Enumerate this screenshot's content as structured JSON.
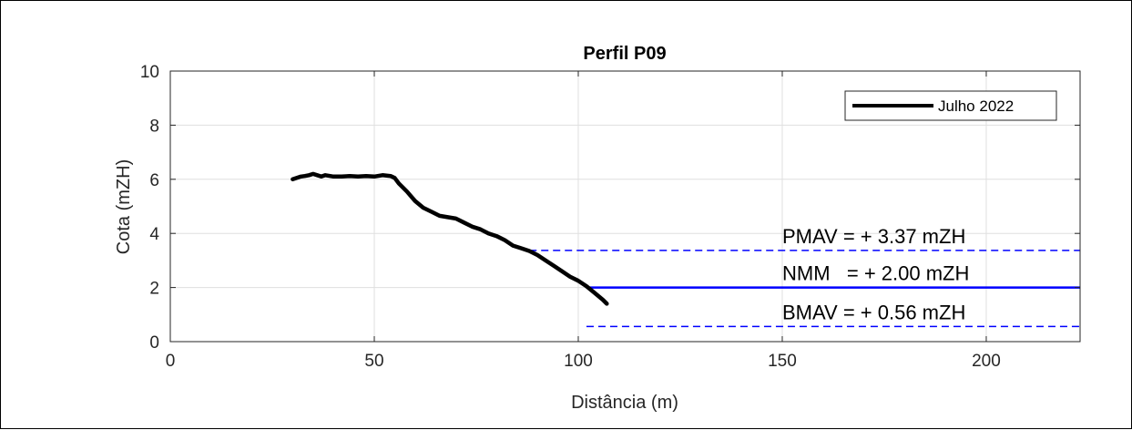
{
  "chart_data": {
    "type": "line",
    "title": "Perfil P09",
    "xlabel": "Distância (m)",
    "ylabel": "Cota (mZH)",
    "xlim": [
      0,
      223
    ],
    "ylim": [
      0,
      10
    ],
    "xticks": [
      0,
      50,
      100,
      150,
      200
    ],
    "yticks": [
      0,
      2,
      4,
      6,
      8,
      10
    ],
    "grid": true,
    "legend_position": "top-right",
    "series": [
      {
        "name": "Julho 2022",
        "color": "#000000",
        "x": [
          30,
          31,
          32,
          33,
          34,
          35,
          36,
          37,
          38,
          40,
          42,
          44,
          46,
          48,
          50,
          52,
          54,
          55,
          56,
          58,
          60,
          62,
          64,
          66,
          68,
          70,
          72,
          74,
          76,
          78,
          80,
          82,
          84,
          86,
          88,
          90,
          92,
          94,
          96,
          98,
          100,
          102,
          104,
          106,
          107
        ],
        "y": [
          6.0,
          6.05,
          6.1,
          6.12,
          6.15,
          6.2,
          6.15,
          6.1,
          6.15,
          6.1,
          6.1,
          6.12,
          6.1,
          6.12,
          6.1,
          6.15,
          6.12,
          6.05,
          5.85,
          5.55,
          5.2,
          4.95,
          4.8,
          4.65,
          4.6,
          4.55,
          4.4,
          4.25,
          4.15,
          4.0,
          3.9,
          3.75,
          3.55,
          3.45,
          3.35,
          3.2,
          3.0,
          2.8,
          2.6,
          2.4,
          2.25,
          2.05,
          1.8,
          1.55,
          1.4
        ]
      }
    ],
    "reference_lines": [
      {
        "label": "PMAV = + 3.37 mZH",
        "y": 3.37,
        "x_start": 88,
        "style": "dashed",
        "color": "#0000ff"
      },
      {
        "label": "NMM   = + 2.00 mZH",
        "y": 2.0,
        "x_start": 102,
        "style": "solid",
        "color": "#0000ff"
      },
      {
        "label": "BMAV = + 0.56 mZH",
        "y": 0.56,
        "x_start": 102,
        "style": "dashed",
        "color": "#0000ff"
      }
    ]
  }
}
